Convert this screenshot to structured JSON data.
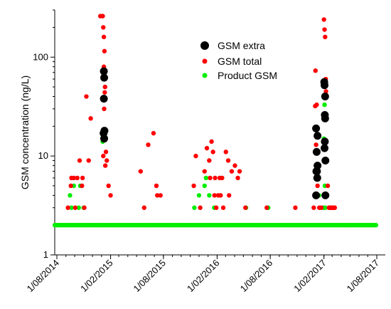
{
  "chart_data": {
    "type": "scatter",
    "title": "",
    "xlabel": "",
    "ylabel": "GSM concentration (ng/L)",
    "y_scale": "log",
    "ylim": [
      1,
      300
    ],
    "xlim": [
      "2014-08-01",
      "2017-08-01"
    ],
    "x_ticks": [
      "2014-08-01",
      "2015-02-01",
      "2015-08-01",
      "2016-02-01",
      "2016-08-01",
      "2017-02-01",
      "2017-08-01"
    ],
    "x_tick_labels": [
      "1/08/2014",
      "1/02/2015",
      "1/08/2015",
      "1/02/2016",
      "1/08/2016",
      "1/02/2017",
      "1/08/2017"
    ],
    "y_ticks": [
      1,
      10,
      100
    ],
    "y_tick_labels": [
      "1",
      "10",
      "100"
    ],
    "grid": false,
    "legend_position": "top-right",
    "colors": {
      "gsm_extra": "#000000",
      "gsm_total": "#ff0000",
      "product_gsm": "#00ee00"
    },
    "series": [
      {
        "name": "GSM extra",
        "color": "#000000",
        "points": [
          {
            "x": "2015-01-09",
            "y": 72
          },
          {
            "x": "2015-01-10",
            "y": 62
          },
          {
            "x": "2015-01-09",
            "y": 38
          },
          {
            "x": "2015-01-08",
            "y": 17
          },
          {
            "x": "2015-01-11",
            "y": 18
          },
          {
            "x": "2015-01-10",
            "y": 15
          },
          {
            "x": "2017-01-05",
            "y": 19
          },
          {
            "x": "2017-01-07",
            "y": 11
          },
          {
            "x": "2017-01-10",
            "y": 16
          },
          {
            "x": "2017-01-06",
            "y": 7
          },
          {
            "x": "2017-01-08",
            "y": 7
          },
          {
            "x": "2017-01-09",
            "y": 6
          },
          {
            "x": "2017-01-10",
            "y": 8
          },
          {
            "x": "2017-01-05",
            "y": 4
          },
          {
            "x": "2017-02-02",
            "y": 56
          },
          {
            "x": "2017-02-03",
            "y": 52
          },
          {
            "x": "2017-02-05",
            "y": 40
          },
          {
            "x": "2017-02-04",
            "y": 26
          },
          {
            "x": "2017-02-05",
            "y": 24
          },
          {
            "x": "2017-02-04",
            "y": 14
          },
          {
            "x": "2017-02-03",
            "y": 12
          },
          {
            "x": "2017-02-06",
            "y": 9
          },
          {
            "x": "2017-02-06",
            "y": 4
          }
        ]
      },
      {
        "name": "GSM total",
        "color": "#ff0000",
        "points": [
          {
            "x": "2014-09-08",
            "y": 3
          },
          {
            "x": "2014-09-18",
            "y": 5
          },
          {
            "x": "2014-09-20",
            "y": 6
          },
          {
            "x": "2014-09-28",
            "y": 6
          },
          {
            "x": "2014-10-03",
            "y": 3
          },
          {
            "x": "2014-10-10",
            "y": 6
          },
          {
            "x": "2014-10-18",
            "y": 9
          },
          {
            "x": "2014-10-26",
            "y": 5
          },
          {
            "x": "2014-10-28",
            "y": 6
          },
          {
            "x": "2014-11-03",
            "y": 3
          },
          {
            "x": "2014-11-10",
            "y": 40
          },
          {
            "x": "2014-11-18",
            "y": 9
          },
          {
            "x": "2014-11-25",
            "y": 24
          },
          {
            "x": "2014-12-28",
            "y": 260
          },
          {
            "x": "2015-01-05",
            "y": 260
          },
          {
            "x": "2015-01-07",
            "y": 200
          },
          {
            "x": "2015-01-09",
            "y": 160
          },
          {
            "x": "2015-01-11",
            "y": 115
          },
          {
            "x": "2015-01-09",
            "y": 80
          },
          {
            "x": "2015-01-13",
            "y": 50
          },
          {
            "x": "2015-01-12",
            "y": 44
          },
          {
            "x": "2015-01-10",
            "y": 30
          },
          {
            "x": "2015-01-07",
            "y": 10
          },
          {
            "x": "2015-01-14",
            "y": 8
          },
          {
            "x": "2015-01-16",
            "y": 11
          },
          {
            "x": "2015-01-19",
            "y": 9
          },
          {
            "x": "2015-01-25",
            "y": 5
          },
          {
            "x": "2015-02-01",
            "y": 4
          },
          {
            "x": "2015-05-15",
            "y": 7
          },
          {
            "x": "2015-05-27",
            "y": 3
          },
          {
            "x": "2015-06-10",
            "y": 13
          },
          {
            "x": "2015-06-28",
            "y": 17
          },
          {
            "x": "2015-07-08",
            "y": 5
          },
          {
            "x": "2015-07-11",
            "y": 4
          },
          {
            "x": "2015-07-22",
            "y": 4
          },
          {
            "x": "2015-11-13",
            "y": 5
          },
          {
            "x": "2015-11-20",
            "y": 10
          },
          {
            "x": "2015-12-05",
            "y": 3
          },
          {
            "x": "2015-12-20",
            "y": 7
          },
          {
            "x": "2015-12-28",
            "y": 12
          },
          {
            "x": "2016-01-05",
            "y": 9
          },
          {
            "x": "2016-01-08",
            "y": 6
          },
          {
            "x": "2016-01-13",
            "y": 14
          },
          {
            "x": "2016-01-18",
            "y": 11
          },
          {
            "x": "2016-01-23",
            "y": 4
          },
          {
            "x": "2016-01-25",
            "y": 6
          },
          {
            "x": "2016-01-29",
            "y": 3
          },
          {
            "x": "2016-02-05",
            "y": 4
          },
          {
            "x": "2016-02-10",
            "y": 6
          },
          {
            "x": "2016-02-13",
            "y": 4
          },
          {
            "x": "2016-02-18",
            "y": 6
          },
          {
            "x": "2016-02-22",
            "y": 3
          },
          {
            "x": "2016-03-02",
            "y": 11
          },
          {
            "x": "2016-03-10",
            "y": 9
          },
          {
            "x": "2016-03-13",
            "y": 4
          },
          {
            "x": "2016-03-22",
            "y": 7
          },
          {
            "x": "2016-04-02",
            "y": 8
          },
          {
            "x": "2016-04-12",
            "y": 6
          },
          {
            "x": "2016-04-18",
            "y": 7
          },
          {
            "x": "2016-05-08",
            "y": 3
          },
          {
            "x": "2016-07-20",
            "y": 3
          },
          {
            "x": "2016-10-26",
            "y": 3
          },
          {
            "x": "2016-12-28",
            "y": 3
          },
          {
            "x": "2017-01-02",
            "y": 32
          },
          {
            "x": "2017-01-03",
            "y": 73
          },
          {
            "x": "2017-01-05",
            "y": 13
          },
          {
            "x": "2017-01-07",
            "y": 33
          },
          {
            "x": "2017-01-08",
            "y": 11
          },
          {
            "x": "2017-01-10",
            "y": 5
          },
          {
            "x": "2017-01-16",
            "y": 3
          },
          {
            "x": "2017-01-23",
            "y": 3
          },
          {
            "x": "2017-02-01",
            "y": 240
          },
          {
            "x": "2017-02-03",
            "y": 190
          },
          {
            "x": "2017-02-05",
            "y": 160
          },
          {
            "x": "2017-02-07",
            "y": 60
          },
          {
            "x": "2017-02-08",
            "y": 45
          },
          {
            "x": "2017-02-06",
            "y": 26
          },
          {
            "x": "2017-02-05",
            "y": 12
          },
          {
            "x": "2017-02-11",
            "y": 9
          },
          {
            "x": "2017-02-14",
            "y": 5
          },
          {
            "x": "2017-02-18",
            "y": 3
          },
          {
            "x": "2017-02-22",
            "y": 3
          },
          {
            "x": "2017-02-26",
            "y": 3
          },
          {
            "x": "2017-03-02",
            "y": 3
          },
          {
            "x": "2017-03-06",
            "y": 3
          },
          {
            "x": "2017-03-10",
            "y": 3
          }
        ]
      },
      {
        "name": "Product GSM",
        "color": "#00ee00",
        "points": [
          {
            "x": "2014-09-15",
            "y": 4
          },
          {
            "x": "2014-09-20",
            "y": 3
          },
          {
            "x": "2014-09-28",
            "y": 5
          },
          {
            "x": "2014-10-15",
            "y": 3
          },
          {
            "x": "2014-10-20",
            "y": 5
          },
          {
            "x": "2014-11-01",
            "y": 3
          },
          {
            "x": "2015-01-05",
            "y": 14
          },
          {
            "x": "2015-11-15",
            "y": 3
          },
          {
            "x": "2015-12-01",
            "y": 4
          },
          {
            "x": "2015-12-20",
            "y": 5
          },
          {
            "x": "2015-12-25",
            "y": 6
          },
          {
            "x": "2016-01-05",
            "y": 4
          },
          {
            "x": "2016-01-22",
            "y": 3
          },
          {
            "x": "2016-05-10",
            "y": 3
          },
          {
            "x": "2016-07-25",
            "y": 3
          },
          {
            "x": "2017-01-03",
            "y": 4
          },
          {
            "x": "2017-01-15",
            "y": 4
          },
          {
            "x": "2017-01-30",
            "y": 3
          },
          {
            "x": "2017-02-01",
            "y": 15
          },
          {
            "x": "2017-02-03",
            "y": 33
          },
          {
            "x": "2017-02-06",
            "y": 9
          },
          {
            "x": "2017-02-04",
            "y": 5
          },
          {
            "x": "2017-02-05",
            "y": 3
          }
        ],
        "baseline": {
          "y": 2,
          "from": "2014-07-25",
          "to": "2017-08-01",
          "every_days": 5
        }
      }
    ]
  }
}
